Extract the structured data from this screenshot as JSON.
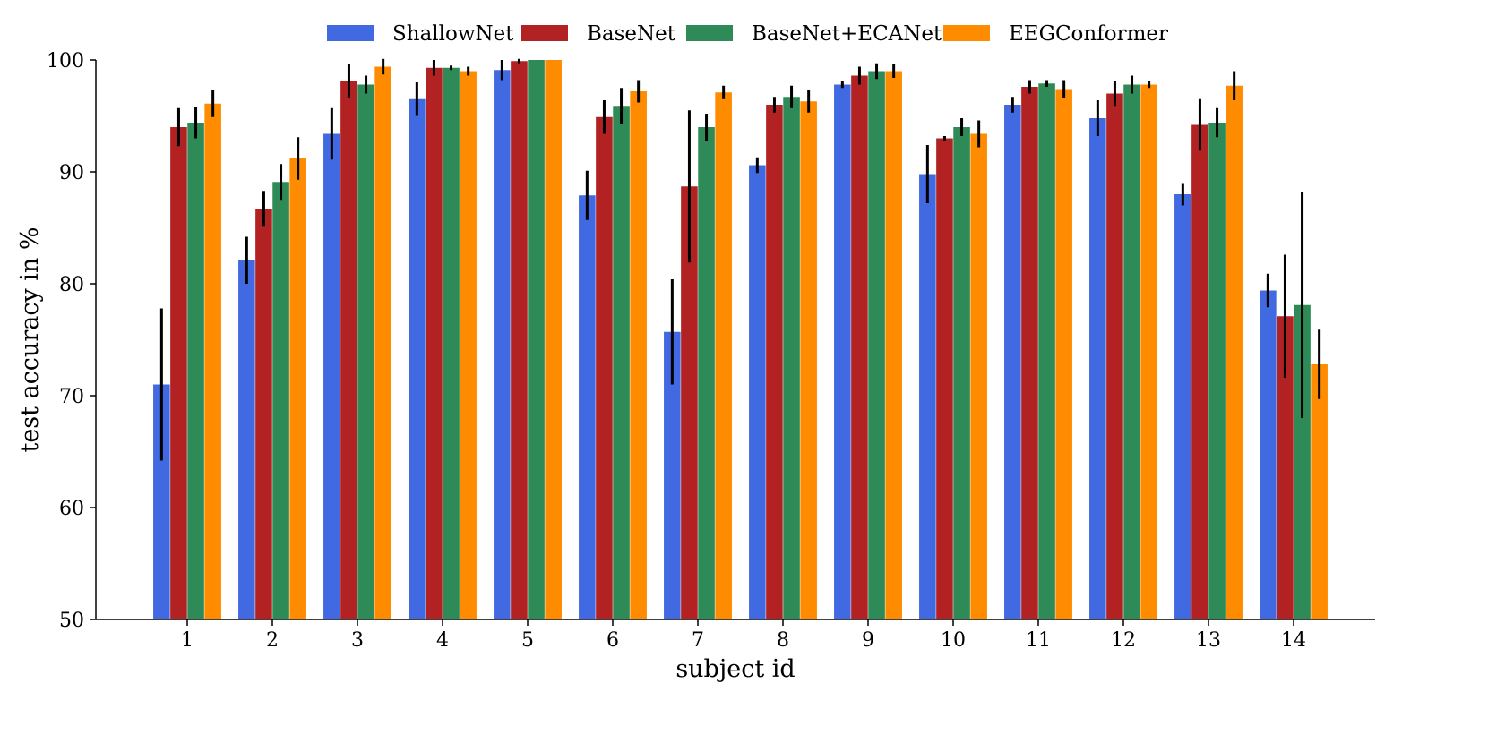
{
  "chart_data": {
    "type": "bar",
    "title": "",
    "xlabel": "subject id",
    "ylabel": "test accuracy in %",
    "ylim": [
      50,
      100
    ],
    "yticks": [
      50,
      60,
      70,
      80,
      90,
      100
    ],
    "legend_position": "top-center",
    "grid": false,
    "categories": [
      "1",
      "2",
      "3",
      "4",
      "5",
      "6",
      "7",
      "8",
      "9",
      "10",
      "11",
      "12",
      "13",
      "14"
    ],
    "series": [
      {
        "name": "ShallowNet",
        "color": "#4169e1",
        "values": [
          71.0,
          82.1,
          93.4,
          96.5,
          99.1,
          87.9,
          75.7,
          90.6,
          97.8,
          89.8,
          96.0,
          94.8,
          88.0,
          79.4
        ],
        "errors": [
          6.8,
          2.1,
          2.3,
          1.5,
          0.9,
          2.2,
          4.7,
          0.7,
          0.3,
          2.6,
          0.7,
          1.6,
          1.0,
          1.5
        ]
      },
      {
        "name": "BaseNet",
        "color": "#b22222",
        "values": [
          94.0,
          86.7,
          98.1,
          99.3,
          99.9,
          94.9,
          88.7,
          96.0,
          98.6,
          93.0,
          97.6,
          97.0,
          94.2,
          77.1
        ],
        "errors": [
          1.7,
          1.6,
          1.5,
          0.7,
          0.2,
          1.5,
          6.8,
          0.7,
          0.8,
          0.2,
          0.6,
          1.1,
          2.3,
          5.5
        ]
      },
      {
        "name": "BaseNet+ECANet",
        "color": "#2e8b57",
        "values": [
          94.4,
          89.1,
          97.8,
          99.3,
          100.0,
          95.9,
          94.0,
          96.7,
          99.0,
          94.0,
          97.9,
          97.8,
          94.4,
          78.1
        ],
        "errors": [
          1.4,
          1.6,
          0.8,
          0.2,
          0.0,
          1.6,
          1.2,
          1.0,
          0.7,
          0.8,
          0.3,
          0.8,
          1.3,
          10.1
        ]
      },
      {
        "name": "EEGConformer",
        "color": "#ff8c00",
        "values": [
          96.1,
          91.2,
          99.4,
          99.0,
          100.0,
          97.2,
          97.1,
          96.3,
          99.0,
          93.4,
          97.4,
          97.8,
          97.7,
          72.8
        ],
        "errors": [
          1.2,
          1.9,
          0.7,
          0.4,
          0.0,
          1.0,
          0.6,
          1.0,
          0.6,
          1.2,
          0.8,
          0.3,
          1.3,
          3.1
        ]
      }
    ]
  }
}
